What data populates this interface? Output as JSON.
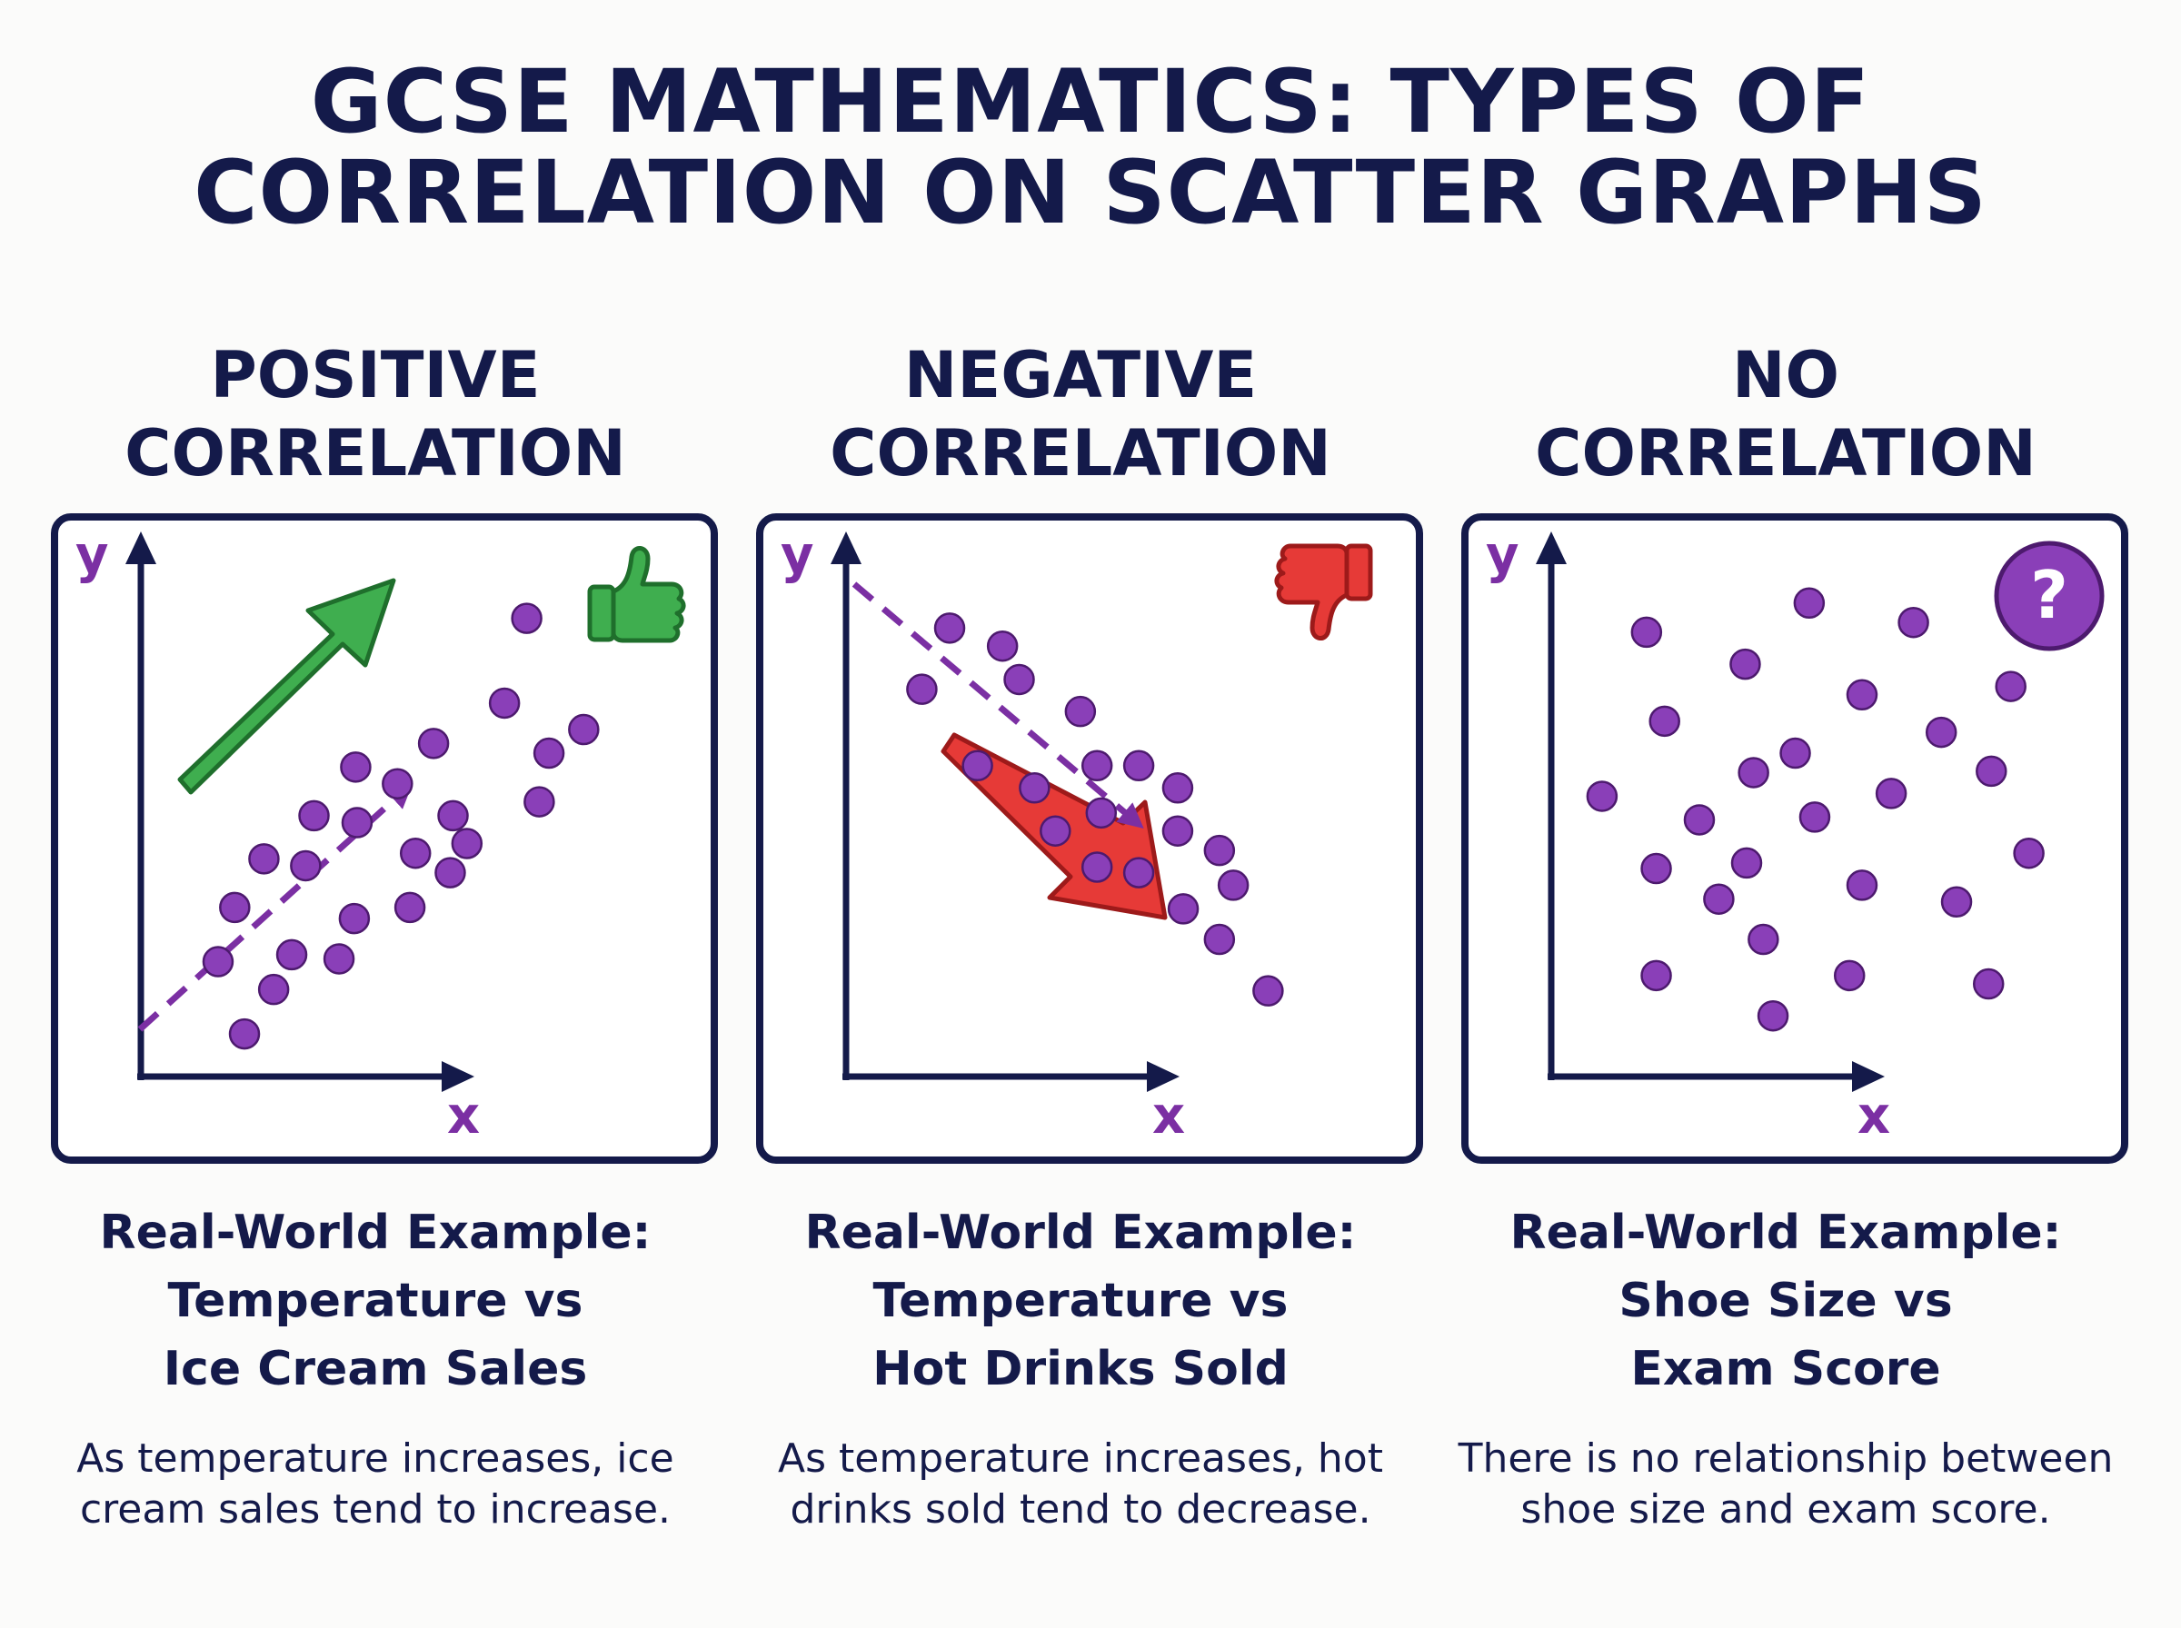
{
  "title": {
    "line1": "GCSE MATHEMATICS: TYPES OF",
    "line2": "CORRELATION ON SCATTER GRAPHS"
  },
  "colors": {
    "navy": "#141a4a",
    "purple": "#7b2fa3",
    "green": "#2f9e44",
    "red": "#d62828"
  },
  "panels": [
    {
      "heading_line1": "POSITIVE",
      "heading_line2": "CORRELATION",
      "y_label": "y",
      "x_label": "x",
      "badge_icon": "thumbs-up-icon",
      "arrow_icon": "up-arrow-icon",
      "example_line1": "Real-World Example:",
      "example_line2": "Temperature vs",
      "example_line3": "Ice Cream Sales",
      "desc_line1": "As temperature increases, ice",
      "desc_line2": "cream sales tend to increase."
    },
    {
      "heading_line1": "NEGATIVE",
      "heading_line2": "CORRELATION",
      "y_label": "y",
      "x_label": "x",
      "badge_icon": "thumbs-down-icon",
      "arrow_icon": "down-arrow-icon",
      "example_line1": "Real-World Example:",
      "example_line2": "Temperature vs",
      "example_line3": "Hot Drinks Sold",
      "desc_line1": "As temperature increases, hot",
      "desc_line2": "drinks sold tend to decrease."
    },
    {
      "heading_line1": "NO",
      "heading_line2": "CORRELATION",
      "y_label": "y",
      "x_label": "x",
      "badge_icon": "question-mark-icon",
      "badge_text": "?",
      "example_line1": "Real-World Example:",
      "example_line2": "Shoe Size vs",
      "example_line3": "Exam Score",
      "desc_line1": "There is no relationship between",
      "desc_line2": "shoe size and exam score."
    }
  ]
}
